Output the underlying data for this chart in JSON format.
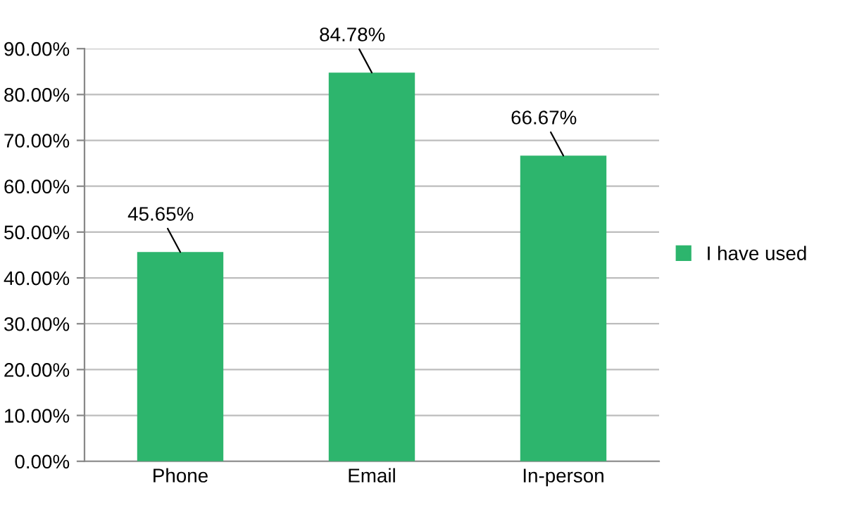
{
  "chart_data": {
    "type": "bar",
    "categories": [
      "Phone",
      "Email",
      "In-person"
    ],
    "series": [
      {
        "name": "I have used",
        "color": "#2db56d",
        "values": [
          45.65,
          84.78,
          66.67
        ],
        "value_labels": [
          "45.65%",
          "84.78%",
          "66.67%"
        ]
      }
    ],
    "ylim": [
      0,
      90
    ],
    "yticks": [
      {
        "value": 0,
        "label": "0.00%"
      },
      {
        "value": 10,
        "label": "10.00%"
      },
      {
        "value": 20,
        "label": "20.00%"
      },
      {
        "value": 30,
        "label": "30.00%"
      },
      {
        "value": 40,
        "label": "40.00%"
      },
      {
        "value": 50,
        "label": "50.00%"
      },
      {
        "value": 60,
        "label": "60.00%"
      },
      {
        "value": 70,
        "label": "70.00%"
      },
      {
        "value": 80,
        "label": "80.00%"
      },
      {
        "value": 90,
        "label": "90.00%"
      }
    ],
    "grid": "y",
    "legend": "right"
  }
}
